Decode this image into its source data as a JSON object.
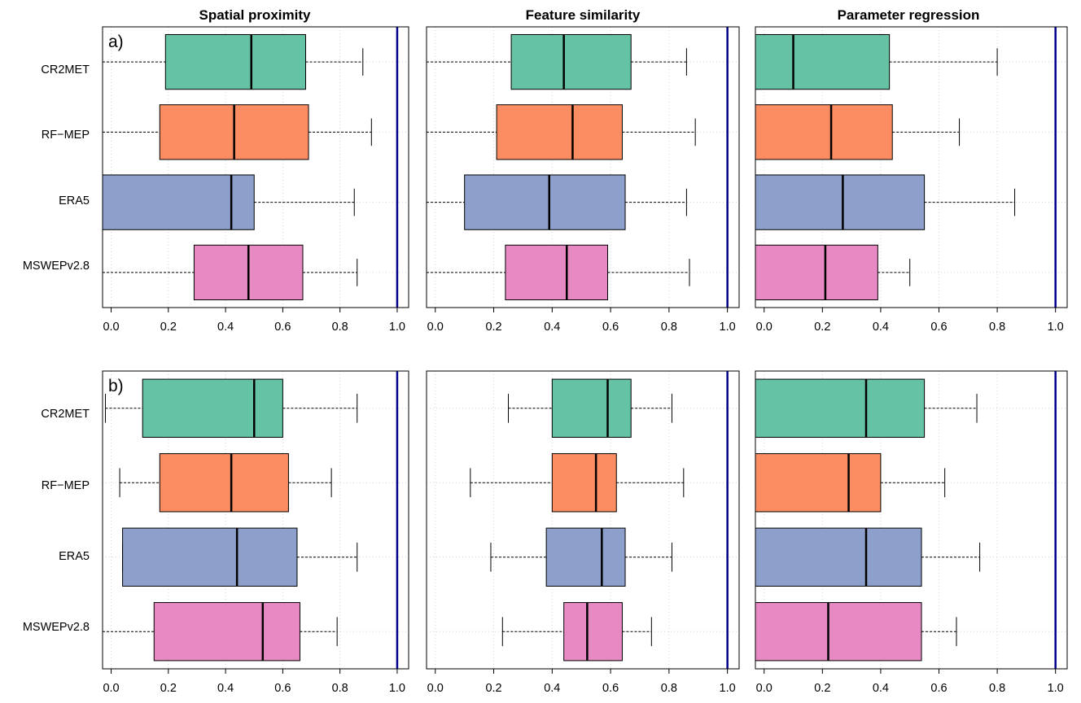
{
  "chart_data": {
    "type": "boxplot",
    "orientation": "horizontal",
    "panel_titles": [
      "Spatial proximity",
      "Feature similarity",
      "Parameter regression"
    ],
    "row_labels": [
      "a)",
      "b)"
    ],
    "categories": [
      "CR2MET",
      "RF−MEP",
      "ERA5",
      "MSWEPv2.8"
    ],
    "colors": {
      "CR2MET": "#66c2a5",
      "RF−MEP": "#fc8d62",
      "ERA5": "#8da0cb",
      "MSWEPv2.8": "#e78ac3",
      "reference_line": "#00008b",
      "grid": "#d3d3d3"
    },
    "xlim": [
      -0.03,
      1.04
    ],
    "xticks": [
      0.0,
      0.2,
      0.4,
      0.6,
      0.8,
      1.0
    ],
    "tick_labels": [
      "0.0",
      "0.2",
      "0.4",
      "0.6",
      "0.8",
      "1.0"
    ],
    "reference_x": 1.0,
    "grid": true,
    "panels": [
      {
        "row": 0,
        "col": 0,
        "boxes": [
          {
            "name": "CR2MET",
            "whislo": -0.05,
            "q1": 0.19,
            "med": 0.49,
            "q3": 0.68,
            "whishi": 0.88
          },
          {
            "name": "RF−MEP",
            "whislo": -0.05,
            "q1": 0.17,
            "med": 0.43,
            "q3": 0.69,
            "whishi": 0.91
          },
          {
            "name": "ERA5",
            "whislo": -0.05,
            "q1": -0.05,
            "med": 0.42,
            "q3": 0.5,
            "whishi": 0.85
          },
          {
            "name": "MSWEPv2.8",
            "whislo": -0.05,
            "q1": 0.29,
            "med": 0.48,
            "q3": 0.67,
            "whishi": 0.86
          }
        ]
      },
      {
        "row": 0,
        "col": 1,
        "boxes": [
          {
            "name": "CR2MET",
            "whislo": -0.05,
            "q1": 0.26,
            "med": 0.44,
            "q3": 0.67,
            "whishi": 0.86
          },
          {
            "name": "RF−MEP",
            "whislo": -0.05,
            "q1": 0.21,
            "med": 0.47,
            "q3": 0.64,
            "whishi": 0.89
          },
          {
            "name": "ERA5",
            "whislo": -0.05,
            "q1": 0.1,
            "med": 0.39,
            "q3": 0.65,
            "whishi": 0.86
          },
          {
            "name": "MSWEPv2.8",
            "whislo": -0.05,
            "q1": 0.24,
            "med": 0.45,
            "q3": 0.59,
            "whishi": 0.87
          }
        ]
      },
      {
        "row": 0,
        "col": 2,
        "boxes": [
          {
            "name": "CR2MET",
            "whislo": -0.05,
            "q1": -0.05,
            "med": 0.1,
            "q3": 0.43,
            "whishi": 0.8
          },
          {
            "name": "RF−MEP",
            "whislo": -0.05,
            "q1": -0.05,
            "med": 0.23,
            "q3": 0.44,
            "whishi": 0.67
          },
          {
            "name": "ERA5",
            "whislo": -0.05,
            "q1": -0.05,
            "med": 0.27,
            "q3": 0.55,
            "whishi": 0.86
          },
          {
            "name": "MSWEPv2.8",
            "whislo": -0.05,
            "q1": -0.05,
            "med": 0.21,
            "q3": 0.39,
            "whishi": 0.5
          }
        ]
      },
      {
        "row": 1,
        "col": 0,
        "boxes": [
          {
            "name": "CR2MET",
            "whislo": -0.02,
            "q1": 0.11,
            "med": 0.5,
            "q3": 0.6,
            "whishi": 0.86
          },
          {
            "name": "RF−MEP",
            "whislo": 0.03,
            "q1": 0.17,
            "med": 0.42,
            "q3": 0.62,
            "whishi": 0.77
          },
          {
            "name": "ERA5",
            "whislo": 0.04,
            "q1": 0.04,
            "med": 0.44,
            "q3": 0.65,
            "whishi": 0.86
          },
          {
            "name": "MSWEPv2.8",
            "whislo": -0.05,
            "q1": 0.15,
            "med": 0.53,
            "q3": 0.66,
            "whishi": 0.79
          }
        ]
      },
      {
        "row": 1,
        "col": 1,
        "boxes": [
          {
            "name": "CR2MET",
            "whislo": 0.25,
            "q1": 0.4,
            "med": 0.59,
            "q3": 0.67,
            "whishi": 0.81
          },
          {
            "name": "RF−MEP",
            "whislo": 0.12,
            "q1": 0.4,
            "med": 0.55,
            "q3": 0.62,
            "whishi": 0.85
          },
          {
            "name": "ERA5",
            "whislo": 0.19,
            "q1": 0.38,
            "med": 0.57,
            "q3": 0.65,
            "whishi": 0.81
          },
          {
            "name": "MSWEPv2.8",
            "whislo": 0.23,
            "q1": 0.44,
            "med": 0.52,
            "q3": 0.64,
            "whishi": 0.74
          }
        ]
      },
      {
        "row": 1,
        "col": 2,
        "boxes": [
          {
            "name": "CR2MET",
            "whislo": -0.05,
            "q1": -0.05,
            "med": 0.35,
            "q3": 0.55,
            "whishi": 0.73
          },
          {
            "name": "RF−MEP",
            "whislo": -0.05,
            "q1": -0.05,
            "med": 0.29,
            "q3": 0.4,
            "whishi": 0.62
          },
          {
            "name": "ERA5",
            "whislo": -0.05,
            "q1": -0.05,
            "med": 0.35,
            "q3": 0.54,
            "whishi": 0.74
          },
          {
            "name": "MSWEPv2.8",
            "whislo": -0.05,
            "q1": -0.05,
            "med": 0.22,
            "q3": 0.54,
            "whishi": 0.66
          }
        ]
      }
    ]
  }
}
